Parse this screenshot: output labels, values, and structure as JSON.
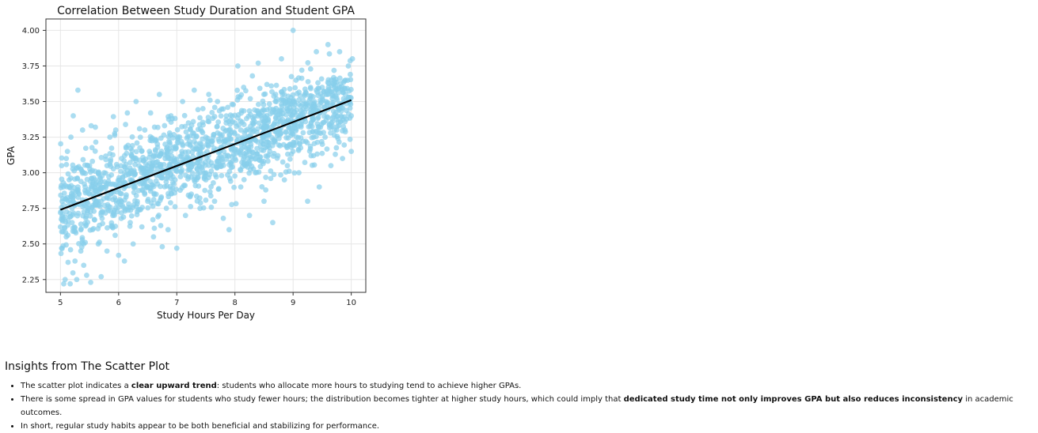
{
  "chart_data": {
    "type": "scatter",
    "title": "Correlation Between Study Duration and Student GPA",
    "xlabel": "Study Hours Per Day",
    "ylabel": "GPA",
    "xlim": [
      4.75,
      10.25
    ],
    "ylim": [
      2.16,
      4.08
    ],
    "xticks": [
      "5",
      "6",
      "7",
      "8",
      "9",
      "10"
    ],
    "yticks": [
      "2.25",
      "2.50",
      "2.75",
      "3.00",
      "3.25",
      "3.50",
      "3.75",
      "4.00"
    ],
    "grid": true,
    "point_color": "#87ceeb",
    "line_color": "#000000",
    "trend_line": {
      "x": [
        5.0,
        10.0
      ],
      "y": [
        2.74,
        3.51
      ]
    },
    "points": [
      [
        5.0,
        2.72
      ],
      [
        5.0,
        2.62
      ],
      [
        5.02,
        2.47
      ],
      [
        5.02,
        3.05
      ],
      [
        5.03,
        2.8
      ],
      [
        5.05,
        2.9
      ],
      [
        5.08,
        2.25
      ],
      [
        5.1,
        2.55
      ],
      [
        5.12,
        3.15
      ],
      [
        5.15,
        2.95
      ],
      [
        5.18,
        3.25
      ],
      [
        5.2,
        2.65
      ],
      [
        5.22,
        3.4
      ],
      [
        5.25,
        2.38
      ],
      [
        5.28,
        2.25
      ],
      [
        5.3,
        3.58
      ],
      [
        5.32,
        2.85
      ],
      [
        5.35,
        2.45
      ],
      [
        5.38,
        3.3
      ],
      [
        5.4,
        2.35
      ],
      [
        5.45,
        2.28
      ],
      [
        5.48,
        2.75
      ],
      [
        5.5,
        3.05
      ],
      [
        5.52,
        2.23
      ],
      [
        5.55,
        2.6
      ],
      [
        5.6,
        3.32
      ],
      [
        5.65,
        2.5
      ],
      [
        5.7,
        2.27
      ],
      [
        5.75,
        3.0
      ],
      [
        5.8,
        2.45
      ],
      [
        5.85,
        3.25
      ],
      [
        5.9,
        2.7
      ],
      [
        5.95,
        3.3
      ],
      [
        6.0,
        2.42
      ],
      [
        6.05,
        3.1
      ],
      [
        6.1,
        2.38
      ],
      [
        6.15,
        3.42
      ],
      [
        6.2,
        2.65
      ],
      [
        6.25,
        2.5
      ],
      [
        6.3,
        3.5
      ],
      [
        6.35,
        3.05
      ],
      [
        6.4,
        2.62
      ],
      [
        6.45,
        3.3
      ],
      [
        6.5,
        2.8
      ],
      [
        6.55,
        3.42
      ],
      [
        6.6,
        2.55
      ],
      [
        6.65,
        3.05
      ],
      [
        6.7,
        3.55
      ],
      [
        6.75,
        2.48
      ],
      [
        6.8,
        3.2
      ],
      [
        6.85,
        2.6
      ],
      [
        6.9,
        3.4
      ],
      [
        6.95,
        2.92
      ],
      [
        7.0,
        2.47
      ],
      [
        7.05,
        3.25
      ],
      [
        7.1,
        3.5
      ],
      [
        7.15,
        2.7
      ],
      [
        7.2,
        3.35
      ],
      [
        7.25,
        2.85
      ],
      [
        7.3,
        3.58
      ],
      [
        7.35,
        3.1
      ],
      [
        7.4,
        2.75
      ],
      [
        7.45,
        3.45
      ],
      [
        7.5,
        2.95
      ],
      [
        7.55,
        3.55
      ],
      [
        7.6,
        3.22
      ],
      [
        7.65,
        2.8
      ],
      [
        7.7,
        3.5
      ],
      [
        7.75,
        3.05
      ],
      [
        7.8,
        2.68
      ],
      [
        7.85,
        3.35
      ],
      [
        7.9,
        2.6
      ],
      [
        7.95,
        3.48
      ],
      [
        8.0,
        3.1
      ],
      [
        8.05,
        3.75
      ],
      [
        8.1,
        2.9
      ],
      [
        8.15,
        3.6
      ],
      [
        8.2,
        3.25
      ],
      [
        8.25,
        2.7
      ],
      [
        8.3,
        3.68
      ],
      [
        8.35,
        3.0
      ],
      [
        8.4,
        3.77
      ],
      [
        8.45,
        3.4
      ],
      [
        8.5,
        2.8
      ],
      [
        8.55,
        3.62
      ],
      [
        8.6,
        3.15
      ],
      [
        8.65,
        2.65
      ],
      [
        8.7,
        3.55
      ],
      [
        8.75,
        3.3
      ],
      [
        8.8,
        3.8
      ],
      [
        8.85,
        2.95
      ],
      [
        8.9,
        3.5
      ],
      [
        8.95,
        3.2
      ],
      [
        9.0,
        4.0
      ],
      [
        9.05,
        3.65
      ],
      [
        9.1,
        3.0
      ],
      [
        9.15,
        3.72
      ],
      [
        9.2,
        3.38
      ],
      [
        9.25,
        2.8
      ],
      [
        9.3,
        3.6
      ],
      [
        9.35,
        3.12
      ],
      [
        9.4,
        3.85
      ],
      [
        9.45,
        2.9
      ],
      [
        9.5,
        3.52
      ],
      [
        9.55,
        3.25
      ],
      [
        9.6,
        3.9
      ],
      [
        9.65,
        3.05
      ],
      [
        9.7,
        3.65
      ],
      [
        9.75,
        3.3
      ],
      [
        9.8,
        3.85
      ],
      [
        9.85,
        3.1
      ],
      [
        9.9,
        3.55
      ],
      [
        9.95,
        3.75
      ],
      [
        10.0,
        3.4
      ],
      [
        10.0,
        3.15
      ],
      [
        10.02,
        3.8
      ],
      [
        5.1,
        3.1
      ],
      [
        5.2,
        2.75
      ],
      [
        5.3,
        2.9
      ],
      [
        5.4,
        3.0
      ],
      [
        5.5,
        2.85
      ],
      [
        5.6,
        2.95
      ],
      [
        5.7,
        2.8
      ],
      [
        5.8,
        3.05
      ],
      [
        5.9,
        2.92
      ],
      [
        6.0,
        2.88
      ],
      [
        6.1,
        3.0
      ],
      [
        6.2,
        2.95
      ],
      [
        6.3,
        3.1
      ],
      [
        6.4,
        3.0
      ],
      [
        6.5,
        3.05
      ],
      [
        6.6,
        3.12
      ],
      [
        6.7,
        3.0
      ],
      [
        6.8,
        3.1
      ],
      [
        6.9,
        3.15
      ],
      [
        7.0,
        3.05
      ],
      [
        7.1,
        3.2
      ],
      [
        7.2,
        3.1
      ],
      [
        7.3,
        3.22
      ],
      [
        7.4,
        3.15
      ],
      [
        7.5,
        3.25
      ],
      [
        7.6,
        3.2
      ],
      [
        7.7,
        3.28
      ],
      [
        7.8,
        3.22
      ],
      [
        7.9,
        3.3
      ],
      [
        8.0,
        3.35
      ],
      [
        8.1,
        3.3
      ],
      [
        8.2,
        3.38
      ],
      [
        8.3,
        3.35
      ],
      [
        8.4,
        3.42
      ],
      [
        8.5,
        3.4
      ],
      [
        8.6,
        3.45
      ],
      [
        8.7,
        3.42
      ],
      [
        8.8,
        3.48
      ],
      [
        8.9,
        3.45
      ],
      [
        9.0,
        3.5
      ],
      [
        9.1,
        3.48
      ],
      [
        9.2,
        3.55
      ],
      [
        9.3,
        3.52
      ],
      [
        9.4,
        3.58
      ],
      [
        9.5,
        3.6
      ],
      [
        9.6,
        3.55
      ],
      [
        9.7,
        3.62
      ],
      [
        9.8,
        3.6
      ],
      [
        9.9,
        3.65
      ]
    ]
  },
  "insights": {
    "heading": "Insights from The Scatter Plot",
    "bullet1_prefix": "The scatter plot indicates a ",
    "bullet1_bold": "clear upward trend",
    "bullet1_suffix": ": students who allocate more hours to studying tend to achieve higher GPAs.",
    "bullet2_prefix": "There is some spread in GPA values for students who study fewer hours; the distribution becomes tighter at higher study hours, which could imply that ",
    "bullet2_bold": "dedicated study time not only improves GPA but also reduces inconsistency",
    "bullet2_suffix": " in academic outcomes.",
    "bullet3": "In short, regular study habits appear to be both beneficial and stabilizing for performance."
  }
}
